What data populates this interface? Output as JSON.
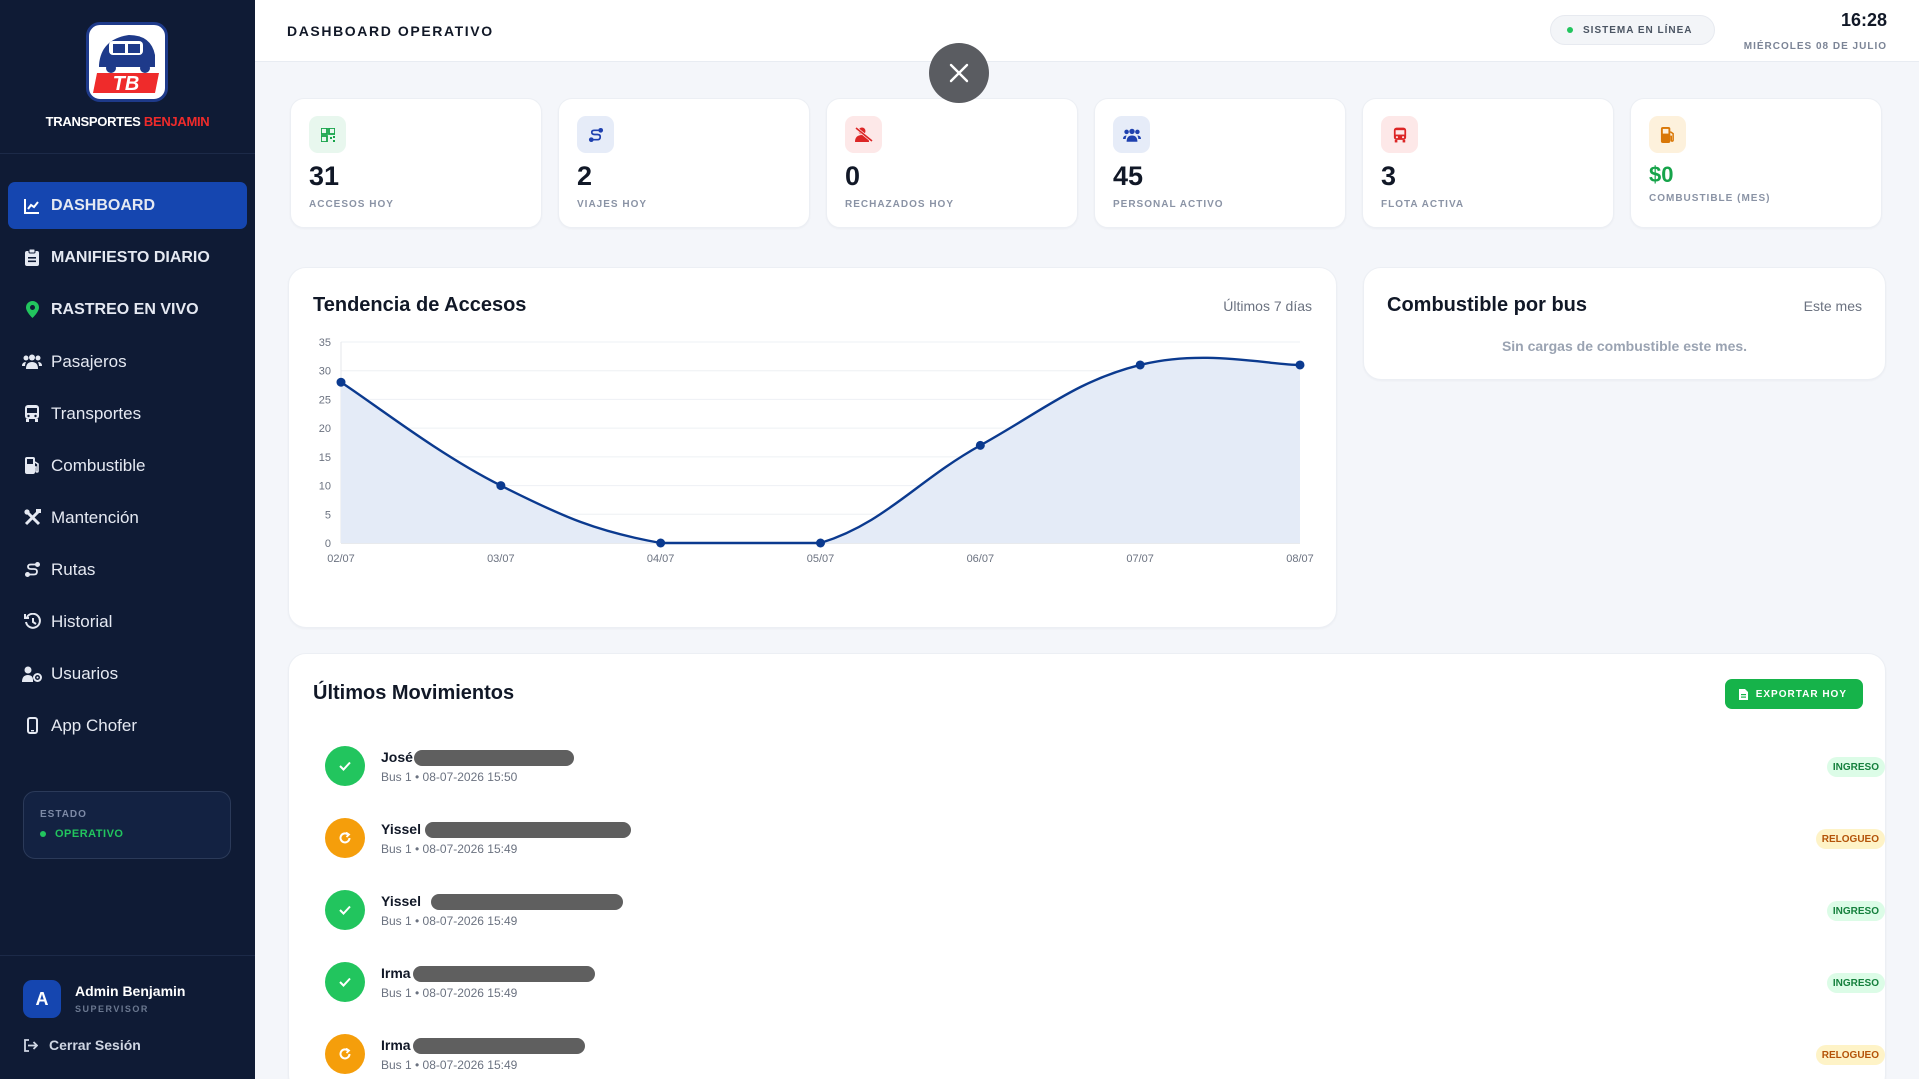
{
  "brand": {
    "logo_initials": "TB",
    "name_part1": "TRANSPORTES ",
    "name_part2": "BENJAMIN"
  },
  "sidebar": {
    "items": [
      {
        "label": "DASHBOARD",
        "icon": "chart-line-icon",
        "active": true
      },
      {
        "label": "MANIFIESTO DIARIO",
        "icon": "clipboard-icon"
      },
      {
        "label": "RASTREO EN VIVO",
        "icon": "map-pin-icon"
      },
      {
        "label": "Pasajeros",
        "icon": "users-icon"
      },
      {
        "label": "Transportes",
        "icon": "bus-icon"
      },
      {
        "label": "Combustible",
        "icon": "gas-pump-icon"
      },
      {
        "label": "Mantención",
        "icon": "tools-icon"
      },
      {
        "label": "Rutas",
        "icon": "route-icon"
      },
      {
        "label": "Historial",
        "icon": "history-icon"
      },
      {
        "label": "Usuarios",
        "icon": "user-gear-icon"
      },
      {
        "label": "App Chofer",
        "icon": "mobile-icon"
      }
    ],
    "estado": {
      "label": "ESTADO",
      "value": "OPERATIVO"
    },
    "user": {
      "initial": "A",
      "name": "Admin Benjamin",
      "role": "SUPERVISOR"
    },
    "logout": "Cerrar Sesión"
  },
  "header": {
    "title": "DASHBOARD OPERATIVO",
    "system_status": "SISTEMA EN LÍNEA",
    "time": "16:28",
    "date": "MIÉRCOLES 08 DE JULIO"
  },
  "stats": [
    {
      "value": "31",
      "label": "ACCESOS HOY",
      "icon": "qr-icon",
      "color": "#16a34a",
      "bg": "#e8f7ee"
    },
    {
      "value": "2",
      "label": "VIAJES HOY",
      "icon": "route-icon",
      "color": "#1e40af",
      "bg": "#e6ecf8"
    },
    {
      "value": "0",
      "label": "RECHAZADOS HOY",
      "icon": "user-x-icon",
      "color": "#dc2626",
      "bg": "#fde8e8"
    },
    {
      "value": "45",
      "label": "PERSONAL ACTIVO",
      "icon": "users-icon",
      "color": "#1e40af",
      "bg": "#e6ecf8"
    },
    {
      "value": "3",
      "label": "FLOTA ACTIVA",
      "icon": "bus-icon",
      "color": "#dc2626",
      "bg": "#fde8e8"
    },
    {
      "value": "$0",
      "label": "COMBUSTIBLE (MES)",
      "icon": "gas-pump-icon",
      "color": "#d97706",
      "bg": "#fdf1dc"
    }
  ],
  "trend_panel": {
    "title": "Tendencia de Accesos",
    "subtitle": "Últimos 7 días"
  },
  "fuel_panel": {
    "title": "Combustible por bus",
    "subtitle": "Este mes",
    "empty": "Sin cargas de combustible este mes."
  },
  "chart_data": {
    "type": "line",
    "title": "Tendencia de Accesos",
    "categories": [
      "02/07",
      "03/07",
      "04/07",
      "05/07",
      "06/07",
      "07/07",
      "08/07"
    ],
    "series": [
      {
        "values": [
          28,
          10,
          0,
          0,
          17,
          31,
          31
        ]
      }
    ],
    "ylim": [
      0,
      35
    ],
    "yticks": [
      0,
      5,
      10,
      15,
      20,
      25,
      30,
      35
    ],
    "grid": true,
    "line_color": "#0b3a8f",
    "fill_color": "#e4ebf7"
  },
  "movements": {
    "title": "Últimos Movimientos",
    "export_label": "EXPORTAR HOY",
    "items": [
      {
        "name": "José",
        "meta": "Bus 1 • 08-07-2026 15:50",
        "type": "INGRESO"
      },
      {
        "name": "Yissel",
        "meta": "Bus 1 • 08-07-2026 15:49",
        "type": "RELOGUEO"
      },
      {
        "name": "Yissel",
        "meta": "Bus 1 • 08-07-2026 15:49",
        "type": "INGRESO"
      },
      {
        "name": "Irma",
        "meta": "Bus 1 • 08-07-2026 15:49",
        "type": "INGRESO"
      },
      {
        "name": "Irma",
        "meta": "Bus 1 • 08-07-2026 15:49",
        "type": "RELOGUEO"
      }
    ]
  }
}
